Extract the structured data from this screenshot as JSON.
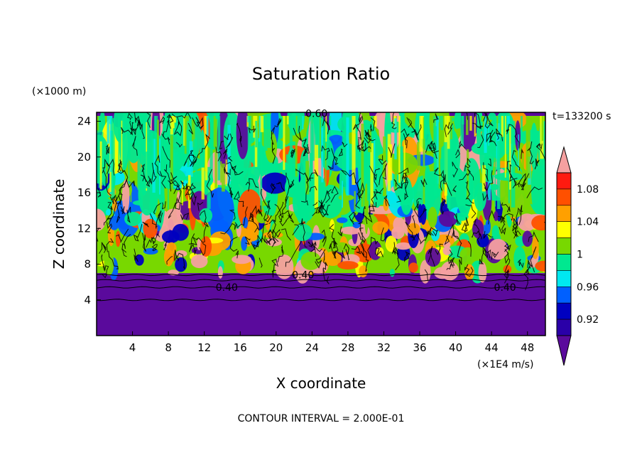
{
  "chart_data": {
    "type": "heatmap",
    "title": "Saturation Ratio",
    "xlabel": "X coordinate",
    "ylabel": "Z coordinate",
    "x_unit_label": "(×1E4 m/s)",
    "y_unit_label": "(×1000 m)",
    "time_label": "t=133200 s",
    "footer": "CONTOUR INTERVAL = 2.000E-01",
    "xlim": [
      0,
      50
    ],
    "ylim": [
      0,
      25
    ],
    "xticks": [
      4,
      8,
      12,
      16,
      20,
      24,
      28,
      32,
      36,
      40,
      44,
      48
    ],
    "yticks": [
      4,
      8,
      12,
      16,
      20,
      24
    ],
    "layer_heights": {
      "dry_layer_top": 7,
      "cloud_layer_top": 24.6
    },
    "contour_labels": [
      {
        "text": "0.40",
        "x": 14.5,
        "y": 5.4
      },
      {
        "text": "0.40",
        "x": 45.5,
        "y": 5.4
      },
      {
        "text": "0.40",
        "x": 23,
        "y": 6.8
      },
      {
        "text": "0.60",
        "x": 24.5,
        "y": 24.9
      }
    ],
    "colorbar": {
      "levels": [
        0.9,
        0.92,
        0.94,
        0.96,
        0.98,
        1.0,
        1.02,
        1.04,
        1.06,
        1.08,
        1.1
      ],
      "tick_labels": [
        "0.92",
        "0.96",
        "1",
        "1.04",
        "1.08"
      ],
      "tick_values": [
        0.92,
        0.96,
        1.0,
        1.04,
        1.08
      ],
      "colors": [
        "#5a0a9c",
        "#2a00a8",
        "#0000c0",
        "#0060ff",
        "#00e8f0",
        "#00e890",
        "#78d800",
        "#ffff00",
        "#ffa000",
        "#ff5000",
        "#ff1a10",
        "#f5a0a0"
      ]
    }
  }
}
